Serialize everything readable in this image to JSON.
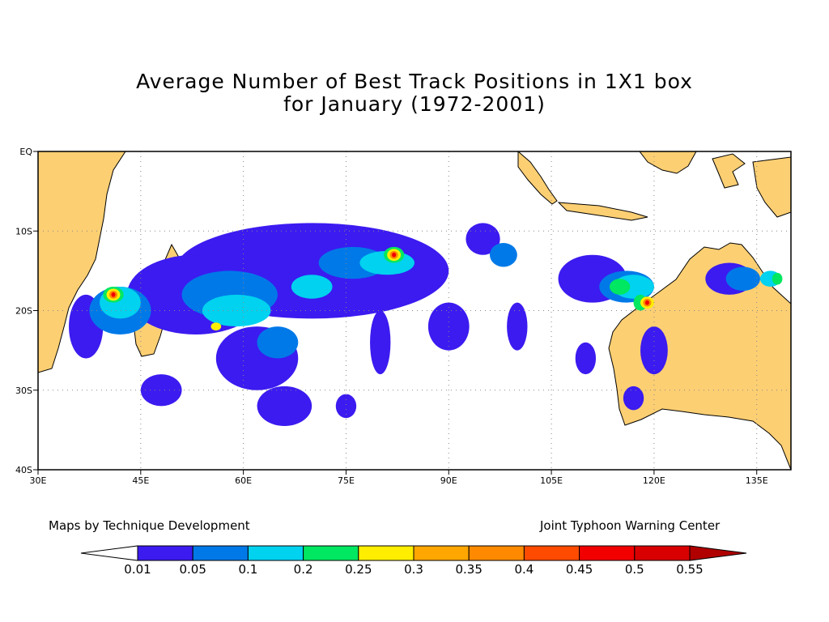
{
  "title": {
    "line1": "Average Number of Best Track Positions in 1X1 box",
    "line2": "for January (1972-2001)"
  },
  "map": {
    "lat_labels": [
      "EQ",
      "10S",
      "20S",
      "30S",
      "40S"
    ],
    "lon_labels": [
      "30E",
      "45E",
      "60E",
      "75E",
      "90E",
      "105E",
      "120E",
      "135E"
    ],
    "lon_range": [
      30,
      140
    ],
    "lat_range": [
      0,
      -40
    ],
    "colors": {
      "land": "#fdcf73",
      "ocean": "#ffffff",
      "grid": "#888888"
    }
  },
  "density_fields": [
    {
      "level": 0.01,
      "color": "#3b1bf0",
      "cells": [
        [
          70,
          -15,
          40,
          12
        ],
        [
          53,
          -18,
          20,
          10
        ],
        [
          62,
          -26,
          12,
          8
        ],
        [
          37,
          -22,
          5,
          8
        ],
        [
          90,
          -22,
          6,
          6
        ],
        [
          111,
          -16,
          10,
          6
        ],
        [
          66,
          -32,
          8,
          5
        ],
        [
          48,
          -30,
          6,
          4
        ],
        [
          80,
          -24,
          3,
          8
        ],
        [
          100,
          -22,
          3,
          6
        ],
        [
          95,
          -11,
          5,
          4
        ],
        [
          131,
          -16,
          7,
          4
        ],
        [
          120,
          -25,
          4,
          6
        ],
        [
          75,
          -32,
          3,
          3
        ],
        [
          110,
          -26,
          3,
          4
        ],
        [
          117,
          -31,
          3,
          3
        ]
      ]
    },
    {
      "level": 0.05,
      "color": "#0079e8",
      "cells": [
        [
          42,
          -20,
          9,
          6
        ],
        [
          58,
          -18,
          14,
          6
        ],
        [
          76,
          -14,
          10,
          4
        ],
        [
          116,
          -17,
          8,
          4
        ],
        [
          65,
          -24,
          6,
          4
        ],
        [
          133,
          -16,
          5,
          3
        ],
        [
          98,
          -13,
          4,
          3
        ]
      ]
    },
    {
      "level": 0.1,
      "color": "#00d2ef",
      "cells": [
        [
          42,
          -19,
          6,
          4
        ],
        [
          59,
          -20,
          10,
          4
        ],
        [
          81,
          -14,
          8,
          3
        ],
        [
          117,
          -17,
          6,
          3
        ],
        [
          70,
          -17,
          6,
          3
        ],
        [
          137,
          -16,
          3,
          2
        ]
      ]
    },
    {
      "level": 0.2,
      "color": "#00e761",
      "cells": [
        [
          41,
          -18,
          3,
          2
        ],
        [
          82,
          -13,
          3,
          2
        ],
        [
          115,
          -17,
          3,
          2
        ],
        [
          118,
          -19,
          2,
          2
        ],
        [
          138,
          -16,
          1.5,
          1.5
        ]
      ]
    },
    {
      "level": 0.25,
      "color": "#ffee00",
      "cells": [
        [
          41,
          -18,
          2,
          1.5
        ],
        [
          82,
          -13,
          2,
          1.5
        ],
        [
          119,
          -19,
          2,
          1.5
        ],
        [
          56,
          -22,
          1.5,
          1
        ]
      ]
    },
    {
      "level": 0.35,
      "color": "#ff8a00",
      "cells": [
        [
          41,
          -18,
          1.2,
          1
        ],
        [
          82,
          -13,
          1.2,
          1
        ],
        [
          119,
          -19,
          1.2,
          1
        ]
      ]
    },
    {
      "level": 0.45,
      "color": "#f20000",
      "cells": [
        [
          41,
          -18,
          0.6,
          0.6
        ],
        [
          82,
          -13,
          0.6,
          0.6
        ],
        [
          119,
          -19,
          0.6,
          0.6
        ]
      ]
    }
  ],
  "footer": {
    "left": "Maps by Technique Development",
    "right": "Joint Typhoon Warning Center"
  },
  "legend": {
    "colors": [
      "#3b1bf0",
      "#0079e8",
      "#00d2ef",
      "#00e761",
      "#ffee00",
      "#ffa600",
      "#ff8a00",
      "#ff4b00",
      "#f20000",
      "#d80000",
      "#b00000",
      "#b00000"
    ],
    "labels": [
      "0.01",
      "0.05",
      "0.1",
      "0.2",
      "0.25",
      "0.3",
      "0.35",
      "0.4",
      "0.45",
      "0.5",
      "0.55"
    ]
  }
}
